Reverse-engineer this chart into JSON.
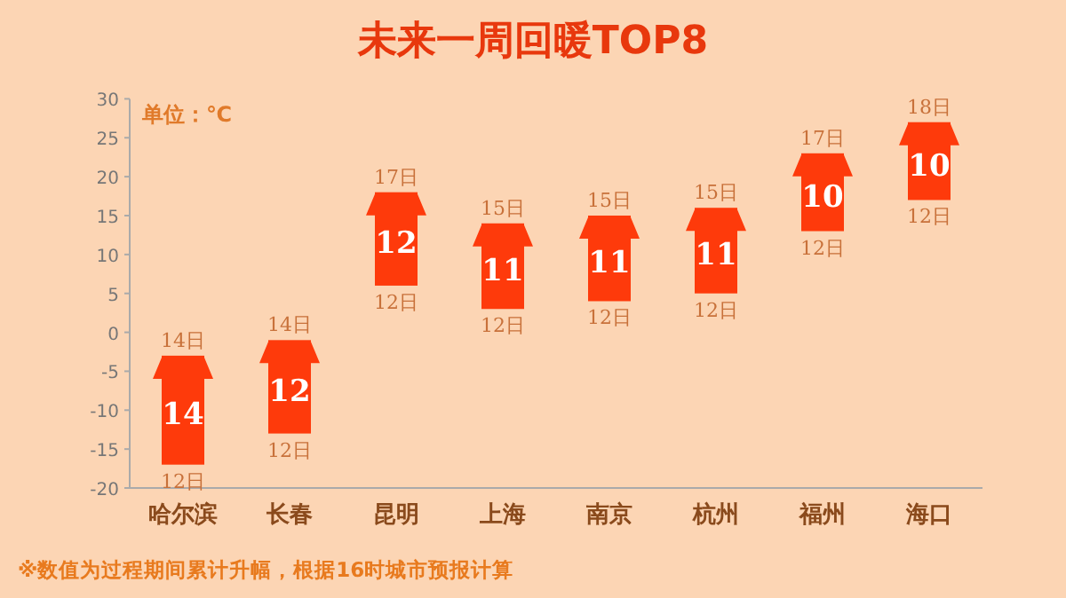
{
  "chart_data": {
    "type": "bar",
    "title": "未来一周回暖TOP8",
    "ylabel": "单位：℃",
    "categories": [
      "哈尔滨",
      "长春",
      "昆明",
      "上海",
      "南京",
      "杭州",
      "福州",
      "海口"
    ],
    "values": [
      14,
      12,
      12,
      11,
      11,
      11,
      10,
      10
    ],
    "base": [
      -17,
      -13,
      6,
      3,
      4,
      5,
      13,
      17
    ],
    "color": "#fe3a0b",
    "ylim": [
      -20,
      30
    ],
    "yticks": [
      -20,
      -15,
      -10,
      -5,
      0,
      5,
      10,
      15,
      20,
      25,
      30
    ],
    "data_labels": true,
    "annotations": [
      {
        "text": "14日",
        "x": "哈尔滨",
        "y": -3
      },
      {
        "text": "12日",
        "x": "哈尔滨",
        "y": -17
      },
      {
        "text": "14日",
        "x": "长春",
        "y": -1
      },
      {
        "text": "12日",
        "x": "长春",
        "y": -13
      },
      {
        "text": "17日",
        "x": "昆明",
        "y": 18
      },
      {
        "text": "12日",
        "x": "昆明",
        "y": 6
      },
      {
        "text": "15日",
        "x": "上海",
        "y": 14
      },
      {
        "text": "12日",
        "x": "上海",
        "y": 3
      },
      {
        "text": "15日",
        "x": "南京",
        "y": 15
      },
      {
        "text": "12日",
        "x": "南京",
        "y": 4
      },
      {
        "text": "15日",
        "x": "杭州",
        "y": 16
      },
      {
        "text": "12日",
        "x": "杭州",
        "y": 5
      },
      {
        "text": "17日",
        "x": "福州",
        "y": 23
      },
      {
        "text": "12日",
        "x": "福州",
        "y": 13
      },
      {
        "text": "18日",
        "x": "海口",
        "y": 27
      },
      {
        "text": "12日",
        "x": "海口",
        "y": 17
      },
      "※数值为过程期间累计升幅，根据16时城市预报计算"
    ]
  }
}
